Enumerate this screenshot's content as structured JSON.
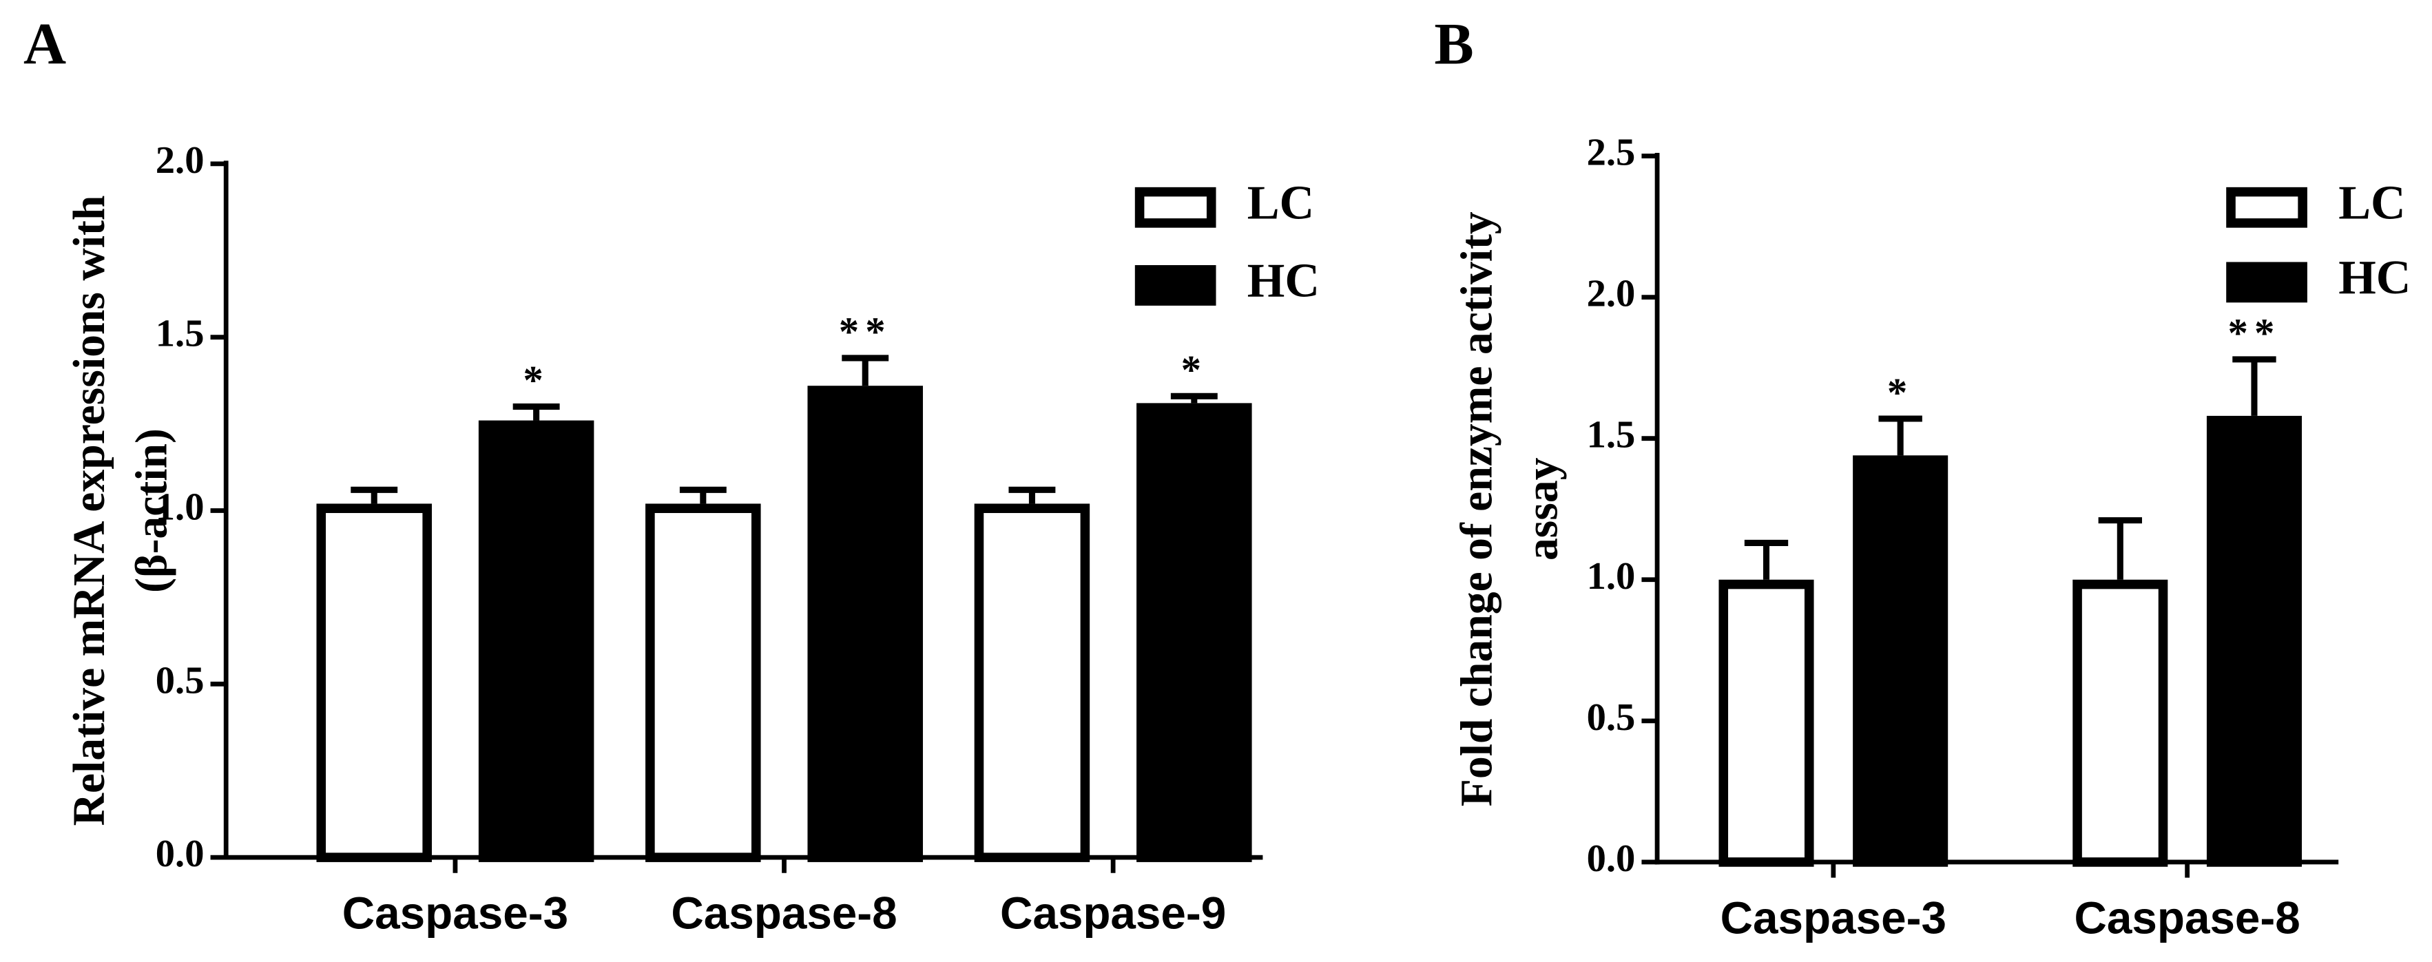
{
  "chart_data": [
    {
      "type": "bar",
      "panel_label": "A",
      "y_label": [
        "Relative mRNA expressions  with",
        "(β-actin)"
      ],
      "categories": [
        "Caspase-3",
        "Caspase-8",
        "Caspase-9"
      ],
      "series": [
        {
          "name": "LC",
          "color": "#ffffff",
          "values": [
            1.02,
            1.02,
            1.02
          ],
          "errors": [
            0.04,
            0.04,
            0.04
          ]
        },
        {
          "name": "HC",
          "color": "#000000",
          "values": [
            1.26,
            1.36,
            1.31
          ],
          "errors": [
            0.04,
            0.08,
            0.02
          ],
          "annotations": [
            "*",
            "**",
            "*"
          ]
        }
      ],
      "ylim": [
        0,
        2
      ],
      "yticks": [
        {
          "value": 0,
          "label": "0.0"
        },
        {
          "value": 0.5,
          "label": "0.5"
        },
        {
          "value": 1,
          "label": "1.0"
        },
        {
          "value": 1.5,
          "label": "1.5"
        },
        {
          "value": 2,
          "label": "2.0"
        }
      ],
      "legend": "top-right"
    },
    {
      "type": "bar",
      "panel_label": "B",
      "y_label": [
        "Fold change of enzyme activity",
        "assay"
      ],
      "categories": [
        "Caspase-3",
        "Caspase-8"
      ],
      "series": [
        {
          "name": "LC",
          "color": "#ffffff",
          "values": [
            1.0,
            1.0
          ],
          "errors": [
            0.13,
            0.21
          ]
        },
        {
          "name": "HC",
          "color": "#000000",
          "values": [
            1.44,
            1.58
          ],
          "errors": [
            0.13,
            0.2
          ],
          "annotations": [
            "*",
            "**"
          ]
        }
      ],
      "ylim": [
        0,
        2.5
      ],
      "yticks": [
        {
          "value": 0,
          "label": "0.0"
        },
        {
          "value": 0.5,
          "label": "0.5"
        },
        {
          "value": 1,
          "label": "1.0"
        },
        {
          "value": 1.5,
          "label": "1.5"
        },
        {
          "value": 2,
          "label": "2.0"
        },
        {
          "value": 2.5,
          "label": "2.5"
        }
      ],
      "legend": "top-right"
    }
  ]
}
